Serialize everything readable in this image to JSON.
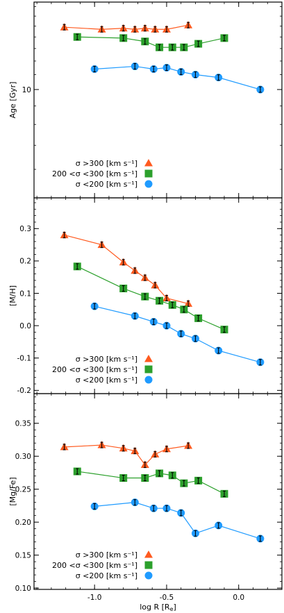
{
  "figure": {
    "xlabel": "log R [R",
    "xlabel_sub": "e",
    "xlabel_end": "]",
    "x_ticks": [
      -1.0,
      -0.5,
      0.0
    ],
    "x_tick_labels": [
      "-1.0",
      "-0.5",
      "0.0"
    ],
    "xlim": [
      -1.42,
      0.3
    ]
  },
  "legend": {
    "entries": [
      {
        "label": "σ >300 [km s⁻¹]",
        "marker": "triangle",
        "color": "#ff5a1f"
      },
      {
        "label": "200 <σ <300 [km s⁻¹]",
        "marker": "square",
        "color": "#2ca02c"
      },
      {
        "label": "σ <200 [km s⁻¹]",
        "marker": "circle",
        "color": "#1f9bff"
      }
    ],
    "placement": "lower-left"
  },
  "chart_data": [
    {
      "type": "line",
      "ylabel": "Age [Gyr]",
      "yscale": "log",
      "ylim": [
        5.0,
        17.5
      ],
      "y_ticks": [
        10
      ],
      "y_tick_labels": [
        "10"
      ],
      "series": [
        {
          "name": "σ >300 [km s⁻¹]",
          "marker": "triangle",
          "color": "#ff5a1f",
          "x": [
            -1.21,
            -0.95,
            -0.8,
            -0.72,
            -0.65,
            -0.58,
            -0.5,
            -0.35
          ],
          "y": [
            14.9,
            14.7,
            14.8,
            14.7,
            14.8,
            14.7,
            14.7,
            15.1
          ]
        },
        {
          "name": "200 <σ <300 [km s⁻¹]",
          "marker": "square",
          "color": "#2ca02c",
          "x": [
            -1.12,
            -0.8,
            -0.65,
            -0.55,
            -0.46,
            -0.38,
            -0.28,
            -0.1
          ],
          "y": [
            14.0,
            13.9,
            13.6,
            13.1,
            13.1,
            13.1,
            13.4,
            13.9
          ]
        },
        {
          "name": "σ <200 [km s⁻¹]",
          "marker": "circle",
          "color": "#1f9bff",
          "x": [
            -1.0,
            -0.72,
            -0.59,
            -0.5,
            -0.4,
            -0.3,
            -0.14,
            0.15
          ],
          "y": [
            11.4,
            11.6,
            11.4,
            11.5,
            11.2,
            11.0,
            10.8,
            10.0
          ]
        }
      ]
    },
    {
      "type": "line",
      "ylabel": "[M/H]",
      "ylim": [
        -0.21,
        0.395
      ],
      "y_ticks": [
        -0.2,
        -0.1,
        0.0,
        0.1,
        0.2,
        0.3
      ],
      "y_tick_labels": [
        "-0.2",
        "-0.1",
        "0.0",
        "0.1",
        "0.2",
        "0.3"
      ],
      "series": [
        {
          "name": "σ >300 [km s⁻¹]",
          "marker": "triangle",
          "color": "#ff5a1f",
          "x": [
            -1.21,
            -0.95,
            -0.8,
            -0.72,
            -0.65,
            -0.58,
            -0.5,
            -0.35
          ],
          "y": [
            0.28,
            0.25,
            0.196,
            0.17,
            0.148,
            0.125,
            0.085,
            0.068
          ]
        },
        {
          "name": "200 <σ <300 [km s⁻¹]",
          "marker": "square",
          "color": "#2ca02c",
          "x": [
            -1.12,
            -0.8,
            -0.65,
            -0.55,
            -0.46,
            -0.38,
            -0.28,
            -0.1
          ],
          "y": [
            0.183,
            0.115,
            0.09,
            0.077,
            0.064,
            0.05,
            0.023,
            -0.012
          ]
        },
        {
          "name": "σ <200 [km s⁻¹]",
          "marker": "circle",
          "color": "#1f9bff",
          "x": [
            -1.0,
            -0.72,
            -0.59,
            -0.5,
            -0.4,
            -0.3,
            -0.14,
            0.15
          ],
          "y": [
            0.06,
            0.03,
            0.012,
            0.0,
            -0.025,
            -0.04,
            -0.077,
            -0.113
          ]
        }
      ]
    },
    {
      "type": "line",
      "ylabel": "[Mg/Fe]",
      "ylim": [
        0.098,
        0.395
      ],
      "y_ticks": [
        0.1,
        0.15,
        0.2,
        0.25,
        0.3,
        0.35
      ],
      "y_tick_labels": [
        "0.10",
        "0.15",
        "0.20",
        "0.25",
        "0.30",
        "0.35"
      ],
      "series": [
        {
          "name": "σ >300 [km s⁻¹]",
          "marker": "triangle",
          "color": "#ff5a1f",
          "x": [
            -1.21,
            -0.95,
            -0.8,
            -0.72,
            -0.65,
            -0.58,
            -0.5,
            -0.35
          ],
          "y": [
            0.314,
            0.317,
            0.312,
            0.308,
            0.287,
            0.303,
            0.311,
            0.316
          ]
        },
        {
          "name": "200 <σ <300 [km s⁻¹]",
          "marker": "square",
          "color": "#2ca02c",
          "x": [
            -1.12,
            -0.8,
            -0.65,
            -0.55,
            -0.46,
            -0.38,
            -0.28,
            -0.1
          ],
          "y": [
            0.277,
            0.267,
            0.267,
            0.274,
            0.271,
            0.259,
            0.263,
            0.243
          ]
        },
        {
          "name": "σ <200 [km s⁻¹]",
          "marker": "circle",
          "color": "#1f9bff",
          "x": [
            -1.0,
            -0.72,
            -0.59,
            -0.5,
            -0.4,
            -0.3,
            -0.14,
            0.15
          ],
          "y": [
            0.224,
            0.23,
            0.221,
            0.221,
            0.214,
            0.183,
            0.195,
            0.175
          ]
        }
      ]
    }
  ]
}
